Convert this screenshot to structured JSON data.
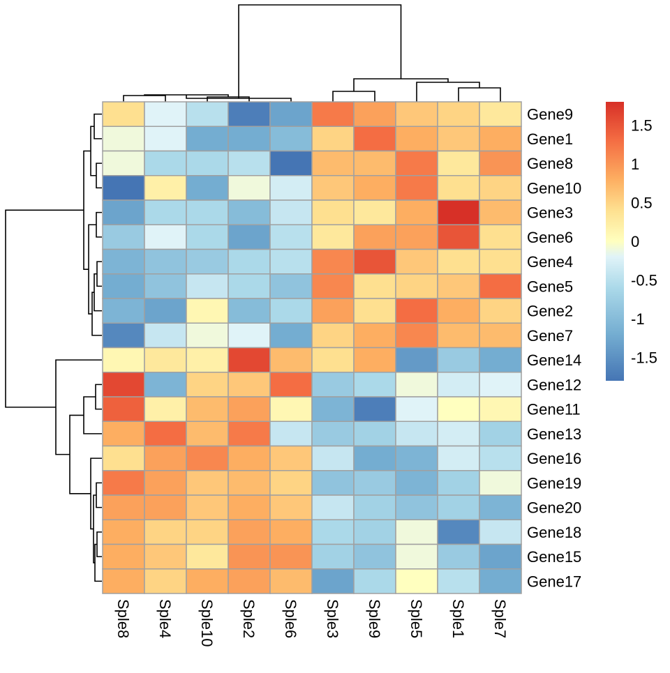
{
  "chart_data": {
    "type": "heatmap",
    "title": "",
    "xlabel": "",
    "ylabel": "",
    "columns": [
      "Sple8",
      "Sple4",
      "Sple10",
      "Sple2",
      "Sple6",
      "Sple3",
      "Sple9",
      "Sple5",
      "Sple1",
      "Sple7"
    ],
    "rows": [
      "Gene9",
      "Gene1",
      "Gene8",
      "Gene10",
      "Gene3",
      "Gene6",
      "Gene4",
      "Gene5",
      "Gene2",
      "Gene7",
      "Gene14",
      "Gene12",
      "Gene11",
      "Gene13",
      "Gene16",
      "Gene19",
      "Gene20",
      "Gene18",
      "Gene15",
      "Gene17"
    ],
    "values": [
      [
        0.4,
        -0.2,
        -0.5,
        -1.7,
        -1.3,
        1.2,
        0.9,
        0.6,
        0.5,
        0.3
      ],
      [
        -0.1,
        -0.2,
        -1.2,
        -1.2,
        -1.0,
        0.5,
        1.3,
        0.8,
        0.6,
        0.8
      ],
      [
        -0.1,
        -0.6,
        -0.6,
        -0.5,
        -1.8,
        0.7,
        0.7,
        1.2,
        0.3,
        1.0
      ],
      [
        -1.8,
        0.2,
        -1.2,
        -0.1,
        -0.3,
        0.6,
        0.8,
        1.2,
        0.4,
        0.5
      ],
      [
        -1.3,
        -0.6,
        -0.6,
        -1.0,
        -0.4,
        0.4,
        0.3,
        0.8,
        1.8,
        0.7
      ],
      [
        -0.8,
        -0.2,
        -0.6,
        -1.3,
        -0.5,
        0.3,
        0.9,
        0.9,
        1.5,
        0.4
      ],
      [
        -1.1,
        -0.9,
        -0.8,
        -0.6,
        -0.5,
        1.1,
        1.5,
        0.6,
        0.4,
        0.4
      ],
      [
        -1.2,
        -0.9,
        -0.4,
        -0.6,
        -0.9,
        1.1,
        0.4,
        0.5,
        0.6,
        1.3
      ],
      [
        -1.1,
        -1.3,
        0.1,
        -1.0,
        -0.6,
        0.9,
        0.4,
        1.3,
        0.8,
        0.5
      ],
      [
        -1.6,
        -0.4,
        -0.1,
        -0.2,
        -1.2,
        0.5,
        0.8,
        1.1,
        0.7,
        0.7
      ],
      [
        0.1,
        0.3,
        0.2,
        1.6,
        0.7,
        0.4,
        0.8,
        -1.4,
        -0.8,
        -1.2
      ],
      [
        1.6,
        -1.1,
        0.5,
        0.6,
        1.3,
        -0.8,
        -0.6,
        -0.1,
        -0.3,
        -0.2
      ],
      [
        1.4,
        0.2,
        0.7,
        0.9,
        0.1,
        -1.1,
        -1.7,
        -0.2,
        0.0,
        0.1
      ],
      [
        0.8,
        1.3,
        0.7,
        1.2,
        -0.4,
        -0.8,
        -0.7,
        -0.4,
        -0.3,
        -0.7
      ],
      [
        0.4,
        0.9,
        1.1,
        0.8,
        0.6,
        -0.4,
        -1.2,
        -1.1,
        -0.3,
        -0.5
      ],
      [
        1.2,
        0.9,
        0.6,
        0.7,
        0.5,
        -0.9,
        -0.8,
        -1.1,
        -0.7,
        -0.1
      ],
      [
        0.9,
        0.9,
        0.6,
        0.8,
        0.6,
        -0.4,
        -0.7,
        -0.9,
        -0.7,
        -1.1
      ],
      [
        0.8,
        0.5,
        0.5,
        0.9,
        0.8,
        -0.6,
        -0.7,
        -0.1,
        -1.6,
        -0.4
      ],
      [
        0.8,
        0.6,
        0.3,
        1.0,
        1.0,
        -0.7,
        -0.9,
        -0.1,
        -0.8,
        -1.3
      ],
      [
        0.8,
        0.5,
        0.8,
        0.9,
        0.7,
        -1.3,
        -0.6,
        0.0,
        -0.5,
        -1.2
      ]
    ],
    "color_scale": {
      "min": -1.8,
      "max": 1.8,
      "stops": [
        {
          "value": -1.8,
          "color": "#4575b4"
        },
        {
          "value": -1.2,
          "color": "#74add1"
        },
        {
          "value": -0.6,
          "color": "#abd9e9"
        },
        {
          "value": -0.2,
          "color": "#e0f3f8"
        },
        {
          "value": 0.0,
          "color": "#ffffbf"
        },
        {
          "value": 0.4,
          "color": "#fee090"
        },
        {
          "value": 0.8,
          "color": "#fdae61"
        },
        {
          "value": 1.3,
          "color": "#f46d43"
        },
        {
          "value": 1.8,
          "color": "#d73027"
        }
      ]
    },
    "legend": {
      "placement": "right",
      "ticks": [
        1.5,
        1,
        0.5,
        0,
        -0.5,
        -1,
        -1.5
      ],
      "tick_labels": [
        "1.5",
        "1",
        "0.5",
        "0",
        "-0.5",
        "-1",
        "-1.5"
      ]
    },
    "cell_border_color": "#a0a0a0",
    "dendrogram_color": "#000000"
  }
}
